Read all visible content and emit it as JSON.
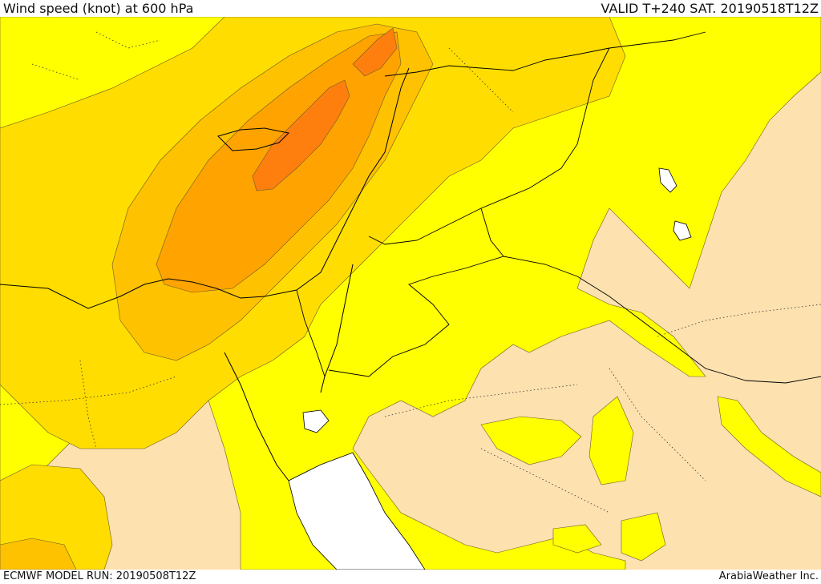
{
  "header": {
    "title": "Wind speed (knot) at 600 hPa",
    "valid_time": "VALID T+240 SAT. 20190518T12Z"
  },
  "footer": {
    "model_run": "ECMWF MODEL RUN: 20190508T12Z",
    "credit": "ArabiaWeather Inc."
  },
  "map": {
    "fill_colors": {
      "calm_beige": "#fde1ae",
      "yellow": "#ffff00",
      "gold": "#ffdd00",
      "light_orange": "#ffc200",
      "orange": "#ffa300",
      "dark_orange": "#ff7f0e",
      "water_white": "#ffffff"
    },
    "line_colors": {
      "contour": "#6a5b2a",
      "coastline": "#000000",
      "border": "#000000"
    }
  }
}
